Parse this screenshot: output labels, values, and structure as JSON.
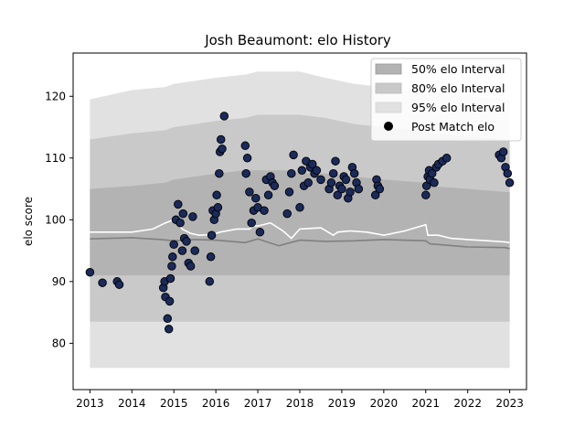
{
  "chart_data": {
    "type": "line",
    "title": "Josh Beaumont: elo History",
    "xlabel": "",
    "ylabel": "elo score",
    "xlim": [
      2012.6,
      2023.4
    ],
    "ylim": [
      72.5,
      127
    ],
    "xticks": [
      2013,
      2014,
      2015,
      2016,
      2017,
      2018,
      2019,
      2020,
      2021,
      2022,
      2023
    ],
    "xtick_labels": [
      "2013",
      "2014",
      "2015",
      "2016",
      "2017",
      "2018",
      "2019",
      "2020",
      "2021",
      "2022",
      "2023"
    ],
    "yticks": [
      80,
      90,
      100,
      110,
      120
    ],
    "ytick_labels": [
      "80",
      "90",
      "100",
      "110",
      "120"
    ],
    "grid": false,
    "legend_position": "top-right",
    "legend": [
      {
        "label": "50% elo Interval",
        "kind": "band",
        "color": "#b3b3b3"
      },
      {
        "label": "80% elo Interval",
        "kind": "band",
        "color": "#c9c9c9"
      },
      {
        "label": "95% elo Interval",
        "kind": "band",
        "color": "#e1e1e1"
      },
      {
        "label": "Post Match elo",
        "kind": "marker",
        "color": "#000000"
      }
    ],
    "colors": {
      "band50": "#b3b3b3",
      "band80": "#c9c9c9",
      "band95": "#e1e1e1",
      "median": "#ffffff",
      "mean": "#808080",
      "marker_fill": "#1a2a5a",
      "marker_edge": "#000000",
      "highlight_marker": "#d62728"
    },
    "series": [
      {
        "kind": "band",
        "x": [
          2013.0,
          2014.0,
          2014.8,
          2015.0,
          2015.5,
          2016.0,
          2016.7,
          2017.0,
          2017.7,
          2018.0,
          2018.6,
          2019.3,
          2020.0,
          2021.0,
          2021.1,
          2022.0,
          2022.9,
          2023.0
        ],
        "p95_low": [
          76,
          76,
          76,
          76,
          76,
          76,
          76,
          76,
          76,
          76,
          76,
          76,
          76,
          76,
          76,
          76,
          76,
          76
        ],
        "p95_high": [
          119.5,
          121,
          121.5,
          122,
          122.5,
          123,
          123.5,
          124,
          124,
          124,
          123,
          122,
          121.5,
          120.5,
          120.5,
          120,
          119.5,
          119.5
        ],
        "p80_low": [
          83.5,
          83.5,
          83.5,
          83.5,
          83.5,
          83.5,
          83.5,
          83.5,
          83.5,
          83.5,
          83.5,
          83.5,
          83.5,
          83.5,
          83.5,
          83.5,
          83.5,
          83.5
        ],
        "p80_high": [
          113,
          114,
          114.5,
          115,
          115.5,
          116,
          116.5,
          117,
          117,
          117,
          116.5,
          115.5,
          115,
          114.5,
          114,
          113.5,
          113,
          113
        ],
        "p50_low": [
          91,
          91,
          91,
          91,
          91,
          91,
          91,
          91,
          91,
          91,
          91,
          91,
          91,
          91,
          91,
          91,
          91,
          91
        ],
        "p50_high": [
          105,
          105.5,
          106,
          106.5,
          107,
          107.5,
          108,
          108,
          108,
          107.5,
          107.5,
          107,
          106.5,
          106,
          105.5,
          105,
          104.5,
          104.5
        ]
      },
      {
        "kind": "line",
        "name": "median",
        "x": [
          2013.0,
          2014.0,
          2014.5,
          2014.8,
          2015.0,
          2015.2,
          2015.4,
          2015.6,
          2015.9,
          2016.1,
          2016.5,
          2016.8,
          2016.9,
          2017.0,
          2017.3,
          2017.6,
          2017.8,
          2018.0,
          2018.5,
          2018.8,
          2018.9,
          2019.2,
          2019.6,
          2020.0,
          2020.5,
          2021.0,
          2021.05,
          2021.3,
          2021.6,
          2022.0,
          2022.5,
          2022.9,
          2023.0
        ],
        "y": [
          98.0,
          98.0,
          98.5,
          99.5,
          100.0,
          98.5,
          97.8,
          97.5,
          97.6,
          98.0,
          98.5,
          98.5,
          99.0,
          99.0,
          99.5,
          98.2,
          97.0,
          98.5,
          98.7,
          97.5,
          98.0,
          98.2,
          98.0,
          97.5,
          98.2,
          99.2,
          97.5,
          97.5,
          97.0,
          96.8,
          96.6,
          96.4,
          96.3
        ]
      },
      {
        "kind": "line",
        "name": "mean",
        "x": [
          2013.0,
          2014.0,
          2014.7,
          2015.0,
          2015.5,
          2016.0,
          2016.7,
          2017.0,
          2017.5,
          2018.0,
          2018.6,
          2019.3,
          2020.0,
          2021.0,
          2021.1,
          2022.0,
          2022.9,
          2023.0
        ],
        "y": [
          96.9,
          97.1,
          96.8,
          96.6,
          96.8,
          96.7,
          96.3,
          96.9,
          95.8,
          96.7,
          96.5,
          96.6,
          96.8,
          96.6,
          96.1,
          95.6,
          95.5,
          95.3
        ]
      },
      {
        "kind": "scatter",
        "name": "Post Match elo",
        "x": [
          2013.0,
          2013.3,
          2013.65,
          2013.7,
          2014.75,
          2014.78,
          2014.8,
          2014.85,
          2014.88,
          2014.9,
          2014.92,
          2014.95,
          2014.97,
          2015.0,
          2015.05,
          2015.1,
          2015.15,
          2015.2,
          2015.22,
          2015.25,
          2015.3,
          2015.35,
          2015.4,
          2015.45,
          2015.5,
          2015.85,
          2015.88,
          2015.9,
          2015.93,
          2015.96,
          2016.0,
          2016.02,
          2016.05,
          2016.08,
          2016.1,
          2016.12,
          2016.15,
          2016.2,
          2016.7,
          2016.72,
          2016.75,
          2016.8,
          2016.85,
          2016.9,
          2016.95,
          2017.0,
          2017.05,
          2017.15,
          2017.2,
          2017.25,
          2017.3,
          2017.35,
          2017.4,
          2017.7,
          2017.75,
          2017.8,
          2017.85,
          2018.0,
          2018.05,
          2018.1,
          2018.15,
          2018.2,
          2018.25,
          2018.3,
          2018.35,
          2018.4,
          2018.5,
          2018.7,
          2018.75,
          2018.8,
          2018.85,
          2018.9,
          2018.95,
          2019.0,
          2019.05,
          2019.1,
          2019.15,
          2019.2,
          2019.25,
          2019.3,
          2019.35,
          2019.4,
          2019.8,
          2019.83,
          2019.86,
          2019.9,
          2021.0,
          2021.02,
          2021.05,
          2021.08,
          2021.1,
          2021.15,
          2021.2,
          2021.25,
          2021.3,
          2021.4,
          2021.5,
          2022.75,
          2022.8,
          2022.85,
          2022.9,
          2022.95,
          2023.0
        ],
        "y": [
          91.5,
          89.8,
          90.0,
          89.5,
          89.0,
          90.0,
          87.5,
          84.0,
          82.3,
          86.8,
          90.5,
          92.5,
          94.0,
          96.0,
          100.0,
          102.5,
          99.5,
          95.0,
          101.0,
          97.0,
          96.5,
          93.0,
          92.5,
          100.5,
          95.0,
          90.0,
          94.0,
          97.5,
          101.5,
          100.0,
          101.0,
          104.0,
          102.0,
          107.5,
          111.0,
          113.0,
          111.5,
          116.8,
          112.0,
          107.5,
          110.0,
          104.5,
          99.5,
          101.5,
          103.5,
          102.0,
          98.0,
          101.5,
          106.5,
          104.0,
          107.0,
          106.0,
          105.5,
          101.0,
          104.5,
          107.5,
          110.5,
          102.0,
          108.0,
          105.5,
          109.5,
          106.0,
          108.5,
          109.0,
          107.5,
          108.0,
          106.5,
          105.0,
          106.0,
          107.5,
          109.5,
          104.0,
          105.5,
          105.0,
          107.0,
          106.5,
          103.5,
          104.5,
          108.5,
          107.5,
          106.0,
          105.0,
          104.0,
          106.5,
          105.5,
          105.0,
          104.0,
          105.5,
          107.0,
          108.0,
          106.5,
          107.5,
          106.0,
          108.5,
          109.0,
          109.5,
          110.0,
          110.5,
          110.0,
          111.0,
          108.5,
          107.5,
          106.0
        ]
      }
    ]
  }
}
